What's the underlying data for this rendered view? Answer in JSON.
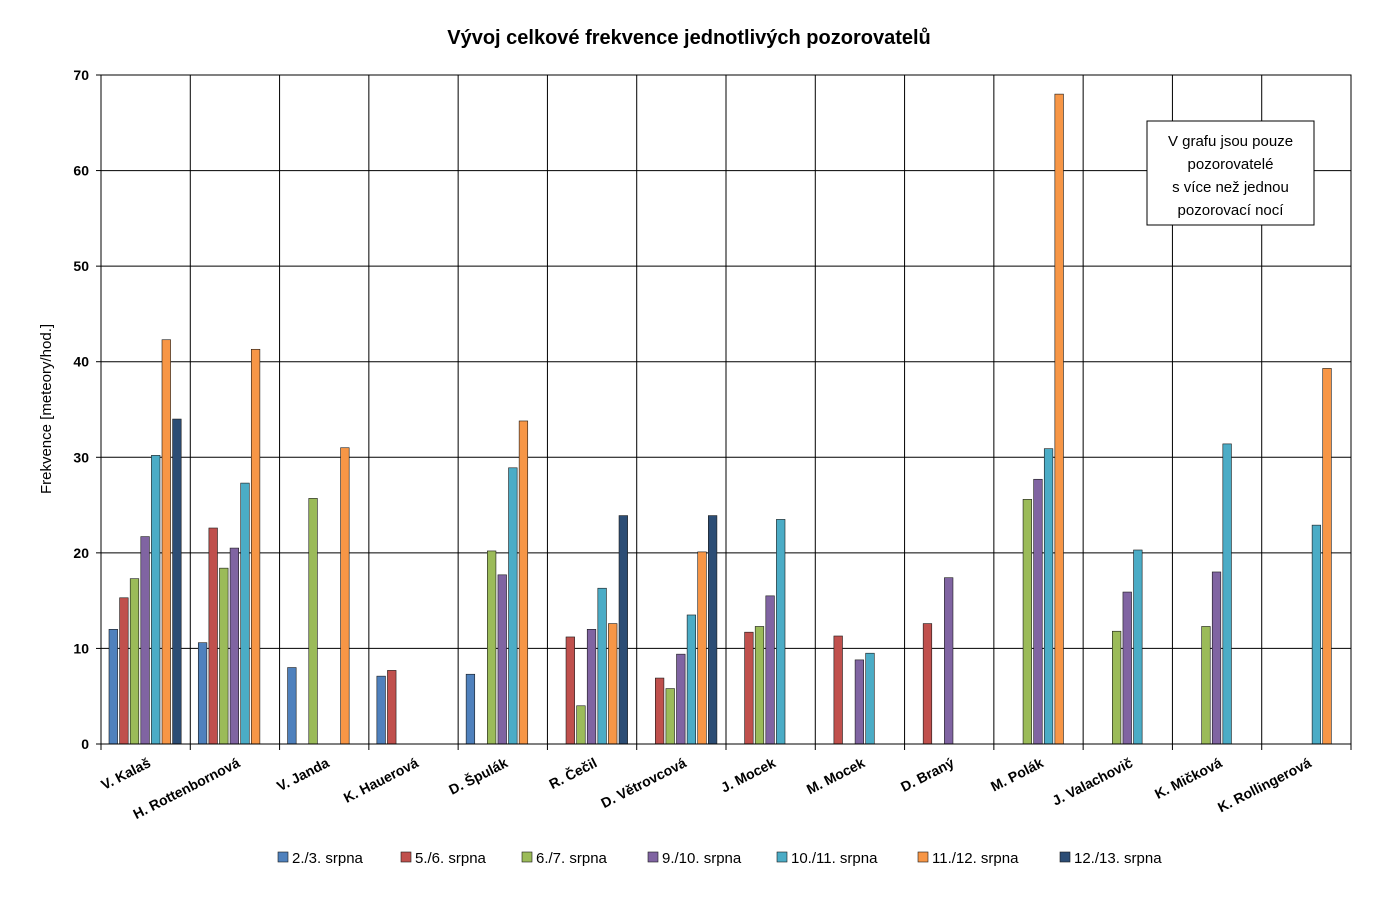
{
  "chart_data": {
    "type": "bar",
    "title": "Vývoj celkové frekvence jednotlivých pozorovatelů",
    "xlabel": "",
    "ylabel": "Frekvence [meteory/hod.]",
    "ylim": [
      0,
      70
    ],
    "yticks": [
      0,
      10,
      20,
      30,
      40,
      50,
      60,
      70
    ],
    "grid": true,
    "legend_position": "bottom",
    "note": [
      "V grafu jsou pouze",
      "pozorovatelé",
      "s více než jednou",
      "pozorovací nocí"
    ],
    "categories": [
      "V. Kalaš",
      "H. Rottenbornová",
      "V. Janda",
      "K. Hauerová",
      "D. Špulák",
      "R. Čečil",
      "D. Větrovcová",
      "J. Mocek",
      "M. Mocek",
      "D. Braný",
      "M. Polák",
      "J. Valachovič",
      "K. Mičková",
      "K. Rollingerová"
    ],
    "series": [
      {
        "name": "2./3. srpna",
        "color": "#4f81bd",
        "values": [
          12.0,
          10.6,
          8.0,
          7.1,
          7.3,
          null,
          null,
          null,
          null,
          null,
          null,
          null,
          null,
          null
        ]
      },
      {
        "name": "5./6. srpna",
        "color": "#c0504d",
        "values": [
          15.3,
          22.6,
          null,
          7.7,
          null,
          11.2,
          6.9,
          11.7,
          11.3,
          12.6,
          null,
          null,
          null,
          null
        ]
      },
      {
        "name": "6./7. srpna",
        "color": "#9bbb59",
        "values": [
          17.3,
          18.4,
          25.7,
          null,
          20.2,
          4.0,
          5.8,
          12.3,
          null,
          null,
          25.6,
          11.8,
          12.3,
          null
        ]
      },
      {
        "name": "9./10. srpna",
        "color": "#8064a2",
        "values": [
          21.7,
          20.5,
          null,
          null,
          17.7,
          12.0,
          9.4,
          15.5,
          8.8,
          17.4,
          27.7,
          15.9,
          18.0,
          null
        ]
      },
      {
        "name": "10./11. srpna",
        "color": "#4bacc6",
        "values": [
          30.2,
          27.3,
          null,
          null,
          28.9,
          16.3,
          13.5,
          23.5,
          9.5,
          null,
          30.9,
          20.3,
          31.4,
          22.9
        ]
      },
      {
        "name": "11./12. srpna",
        "color": "#f79646",
        "values": [
          42.3,
          41.3,
          31.0,
          null,
          33.8,
          12.6,
          20.1,
          null,
          null,
          null,
          68.0,
          null,
          null,
          39.3
        ]
      },
      {
        "name": "12./13. srpna",
        "color": "#2c4d75",
        "values": [
          34.0,
          null,
          null,
          null,
          null,
          23.9,
          23.9,
          null,
          null,
          null,
          null,
          null,
          null,
          null
        ]
      }
    ]
  }
}
